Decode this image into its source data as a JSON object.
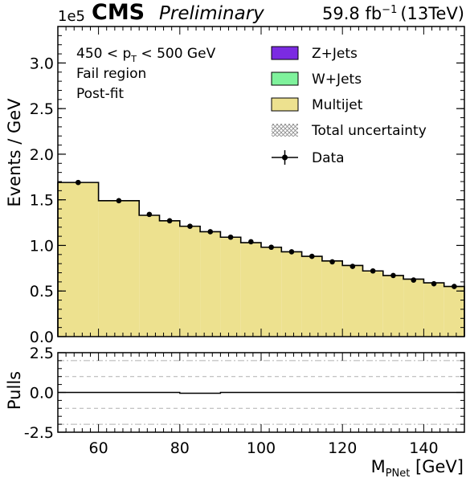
{
  "header": {
    "experiment": "CMS",
    "status": "Preliminary",
    "lumi_value": "59.8 fb",
    "lumi_exp": "−1",
    "energy": "(13TeV)",
    "scale": "1e5"
  },
  "annotations": {
    "pt_pre": "450 < p",
    "pt_sub": "T",
    "pt_post": " < 500 GeV",
    "region": "Fail region",
    "fit": "Post-fit"
  },
  "legend": {
    "zjets": "Z+Jets",
    "wjets": "W+Jets",
    "multijet": "Multijet",
    "unc": "Total uncertainty",
    "data": "Data"
  },
  "axes": {
    "ylabel": "Events / GeV",
    "pulls_label": "Pulls",
    "xlabel_main": "M",
    "xlabel_sub": "PNet",
    "xlabel_unit": " [GeV]"
  },
  "colors": {
    "zjets": "#7b2be2",
    "wjets": "#7ff29c",
    "multijet": "#ede18f",
    "line": "#000000",
    "grid": "#aaaaaa"
  },
  "chart_data": {
    "type": "bar",
    "title": "",
    "xlim": [
      50,
      150
    ],
    "ylim": [
      0,
      3.4
    ],
    "y_scale_label": "1e5",
    "x_ticks": [
      60,
      80,
      100,
      120,
      140
    ],
    "y_ticks": [
      "0.0",
      "0.5",
      "1.0",
      "1.5",
      "2.0",
      "2.5",
      "3.0"
    ],
    "bin_edges": [
      50,
      60,
      70,
      75,
      80,
      85,
      90,
      95,
      100,
      105,
      110,
      115,
      120,
      125,
      130,
      135,
      140,
      145,
      150
    ],
    "series": [
      {
        "name": "Multijet",
        "values": [
          1.69,
          1.49,
          1.33,
          1.27,
          1.21,
          1.15,
          1.09,
          1.03,
          0.98,
          0.93,
          0.88,
          0.83,
          0.78,
          0.72,
          0.67,
          0.63,
          0.59,
          0.55
        ]
      },
      {
        "name": "W+Jets",
        "values": [
          0,
          0,
          0,
          0,
          0,
          0,
          0,
          0,
          0,
          0,
          0,
          0,
          0,
          0,
          0,
          0,
          0,
          0
        ]
      },
      {
        "name": "Z+Jets",
        "values": [
          0,
          0,
          0,
          0,
          0,
          0,
          0,
          0,
          0,
          0,
          0,
          0,
          0,
          0,
          0,
          0,
          0,
          0
        ]
      }
    ],
    "data_x": [
      55,
      65,
      72.5,
      77.5,
      82.5,
      87.5,
      92.5,
      97.5,
      102.5,
      107.5,
      112.5,
      117.5,
      122.5,
      127.5,
      132.5,
      137.5,
      142.5,
      147.5
    ],
    "data_y": [
      1.69,
      1.49,
      1.34,
      1.27,
      1.21,
      1.15,
      1.09,
      1.04,
      0.98,
      0.93,
      0.88,
      0.82,
      0.77,
      0.72,
      0.67,
      0.62,
      0.58,
      0.55
    ],
    "pulls": {
      "ylim": [
        -2.5,
        2.5
      ],
      "y_ticks": [
        "-2.5",
        "0.0",
        "2.5"
      ],
      "ref_lines_dashdot": [
        2,
        -2
      ],
      "ref_lines_dashed": [
        1,
        -1
      ],
      "values": [
        0.0,
        0.0,
        0.0,
        0.0,
        -0.05,
        -0.05,
        0.0,
        0.0,
        0.0,
        0.0,
        0.0,
        0.0,
        0.0,
        0.0,
        0.0,
        0.0,
        0.0,
        0.0
      ]
    }
  }
}
